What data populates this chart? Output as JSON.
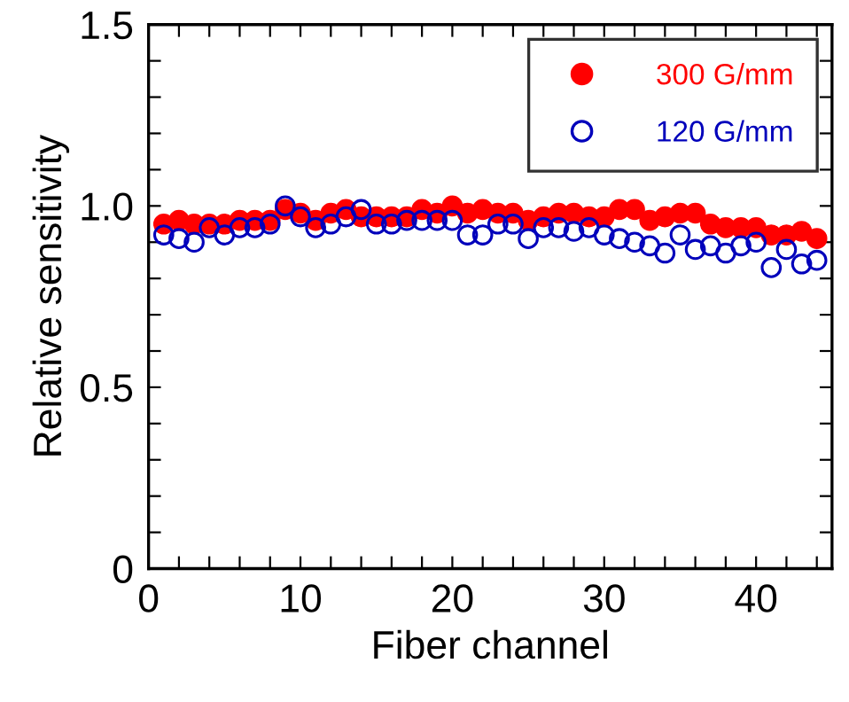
{
  "chart_data": {
    "type": "scatter",
    "xlabel": "Fiber channel",
    "ylabel": "Relative sensitivity",
    "x": [
      1,
      2,
      3,
      4,
      5,
      6,
      7,
      8,
      9,
      10,
      11,
      12,
      13,
      14,
      15,
      16,
      17,
      18,
      19,
      20,
      21,
      22,
      23,
      24,
      25,
      26,
      27,
      28,
      29,
      30,
      31,
      32,
      33,
      34,
      35,
      36,
      37,
      38,
      39,
      40,
      41,
      42,
      43,
      44
    ],
    "series": [
      {
        "name": "300 G/mm",
        "color": "#ff0000",
        "marker": "circle",
        "values": [
          0.95,
          0.96,
          0.95,
          0.95,
          0.95,
          0.96,
          0.96,
          0.96,
          0.99,
          0.98,
          0.96,
          0.98,
          0.99,
          0.97,
          0.97,
          0.97,
          0.97,
          0.99,
          0.98,
          1.0,
          0.98,
          0.99,
          0.98,
          0.98,
          0.96,
          0.97,
          0.98,
          0.98,
          0.97,
          0.97,
          0.99,
          0.99,
          0.96,
          0.97,
          0.98,
          0.98,
          0.95,
          0.94,
          0.94,
          0.94,
          0.92,
          0.92,
          0.93,
          0.91
        ]
      },
      {
        "name": "120 G/mm",
        "color": "#0000bb",
        "marker": "circle",
        "values": [
          0.92,
          0.91,
          0.9,
          0.94,
          0.92,
          0.94,
          0.94,
          0.95,
          1.0,
          0.97,
          0.94,
          0.95,
          0.97,
          0.99,
          0.95,
          0.95,
          0.96,
          0.96,
          0.96,
          0.96,
          0.92,
          0.92,
          0.95,
          0.95,
          0.91,
          0.94,
          0.94,
          0.93,
          0.94,
          0.92,
          0.91,
          0.9,
          0.89,
          0.87,
          0.92,
          0.88,
          0.89,
          0.87,
          0.89,
          0.9,
          0.83,
          0.88,
          0.84,
          0.85
        ]
      }
    ],
    "xlim": [
      0,
      45
    ],
    "xticks": [
      0,
      {
        "value": 2,
        "label": null
      },
      {
        "value": 4,
        "label": null
      },
      {
        "value": 6,
        "label": null
      },
      {
        "value": 8,
        "label": null
      },
      10,
      {
        "value": 12,
        "label": null
      },
      {
        "value": 14,
        "label": null
      },
      {
        "value": 16,
        "label": null
      },
      {
        "value": 18,
        "label": null
      },
      20,
      {
        "value": 22,
        "label": null
      },
      {
        "value": 24,
        "label": null
      },
      {
        "value": 26,
        "label": null
      },
      {
        "value": 28,
        "label": null
      },
      30,
      {
        "value": 32,
        "label": null
      },
      {
        "value": 34,
        "label": null
      },
      {
        "value": 36,
        "label": null
      },
      {
        "value": 38,
        "label": null
      },
      40,
      {
        "value": 42,
        "label": null
      },
      {
        "value": 44,
        "label": null
      }
    ],
    "ylim": [
      0,
      1.5
    ],
    "yticks": [
      0,
      {
        "value": 0.1,
        "label": null
      },
      {
        "value": 0.2,
        "label": null
      },
      {
        "value": 0.3,
        "label": null
      },
      {
        "value": 0.4,
        "label": null
      },
      0.5,
      {
        "value": 0.6,
        "label": null
      },
      {
        "value": 0.7,
        "label": null
      },
      {
        "value": 0.8,
        "label": null
      },
      {
        "value": 0.9,
        "label": null
      },
      {
        "value": 1.0,
        "label": "1.0"
      },
      {
        "value": 1.1,
        "label": null
      },
      {
        "value": 1.2,
        "label": null
      },
      {
        "value": 1.3,
        "label": null
      },
      {
        "value": 1.4,
        "label": null
      },
      1.5
    ],
    "grid": false,
    "legend": "top right"
  }
}
